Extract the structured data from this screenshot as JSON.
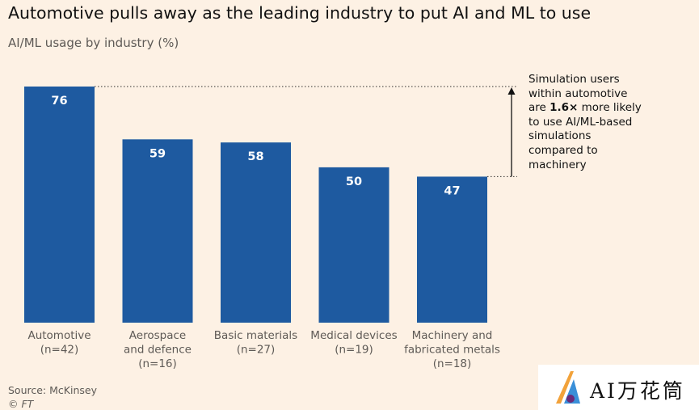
{
  "title": "Automotive pulls away as the leading industry to put AI and ML to use",
  "subtitle": "AI/ML usage by industry (%)",
  "annotation": {
    "line1": "Simulation users within automotive are ",
    "highlight": "1.6×",
    "line2": " more likely to use AI/ML-based simulations compared to machinery"
  },
  "source": "Source: McKinsey",
  "copyright": "© FT",
  "watermark": "AI万花筒",
  "colors": {
    "bar": "#1e5aa0",
    "background": "#fdf1e4",
    "bar_label": "#ffffff",
    "axis_label": "#5e5a56"
  },
  "chart_data": {
    "type": "bar",
    "title": "Automotive pulls away as the leading industry to put AI and ML to use",
    "subtitle": "AI/ML usage by industry (%)",
    "categories": [
      [
        "Automotive",
        "(n=42)"
      ],
      [
        "Aerospace",
        "and defence",
        "(n=16)"
      ],
      [
        "Basic materials",
        "(n=27)"
      ],
      [
        "Medical devices",
        "(n=19)"
      ],
      [
        "Machinery and",
        "fabricated metals",
        "(n=18)"
      ]
    ],
    "values": [
      76,
      59,
      58,
      50,
      47
    ],
    "ylim": [
      0,
      76
    ],
    "grid": false,
    "reference_lines": [
      76,
      47
    ]
  }
}
